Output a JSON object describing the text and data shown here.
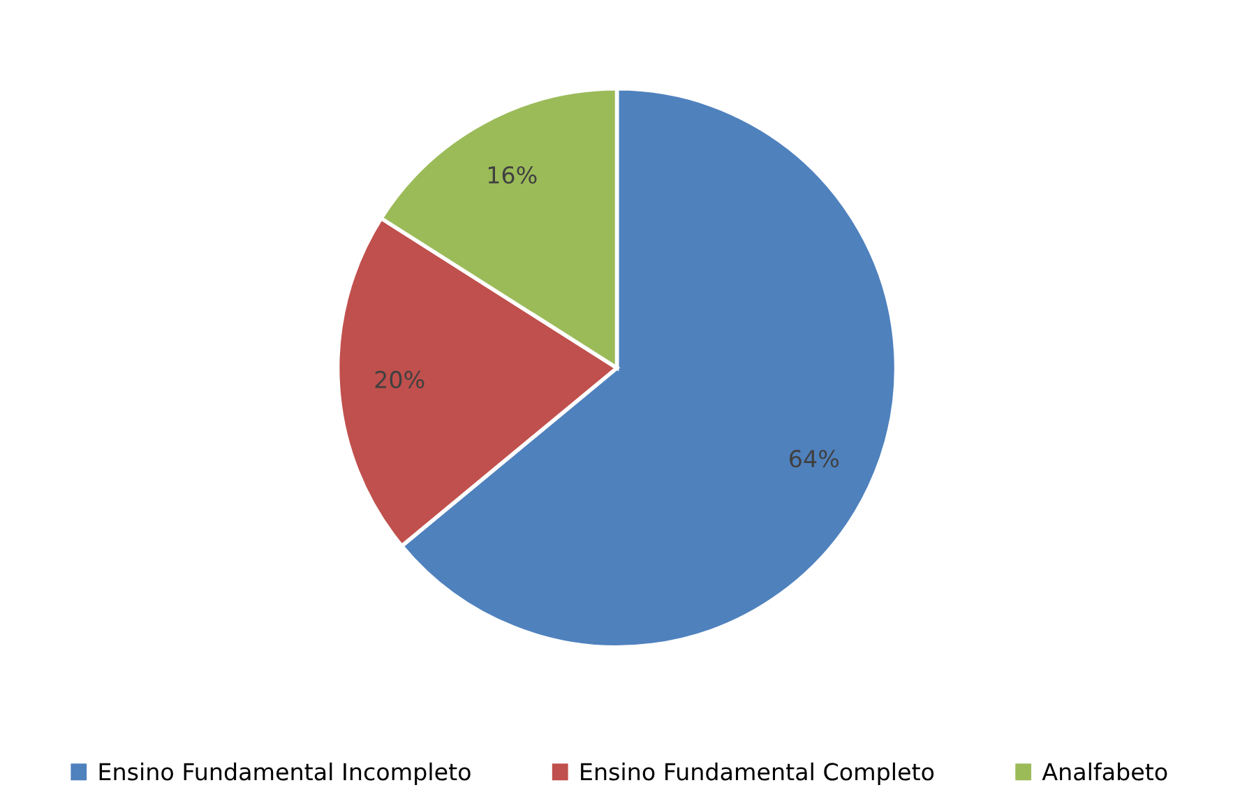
{
  "chart_data": {
    "type": "pie",
    "categories": [
      "Ensino Fundamental Incompleto",
      "Ensino Fundamental Completo",
      "Analfabeto"
    ],
    "values": [
      64,
      20,
      16
    ],
    "colors": [
      "#4f81bd",
      "#c0504d",
      "#9bbb59"
    ],
    "value_labels": [
      "64%",
      "20%",
      "16%"
    ],
    "legend": "bottom"
  }
}
